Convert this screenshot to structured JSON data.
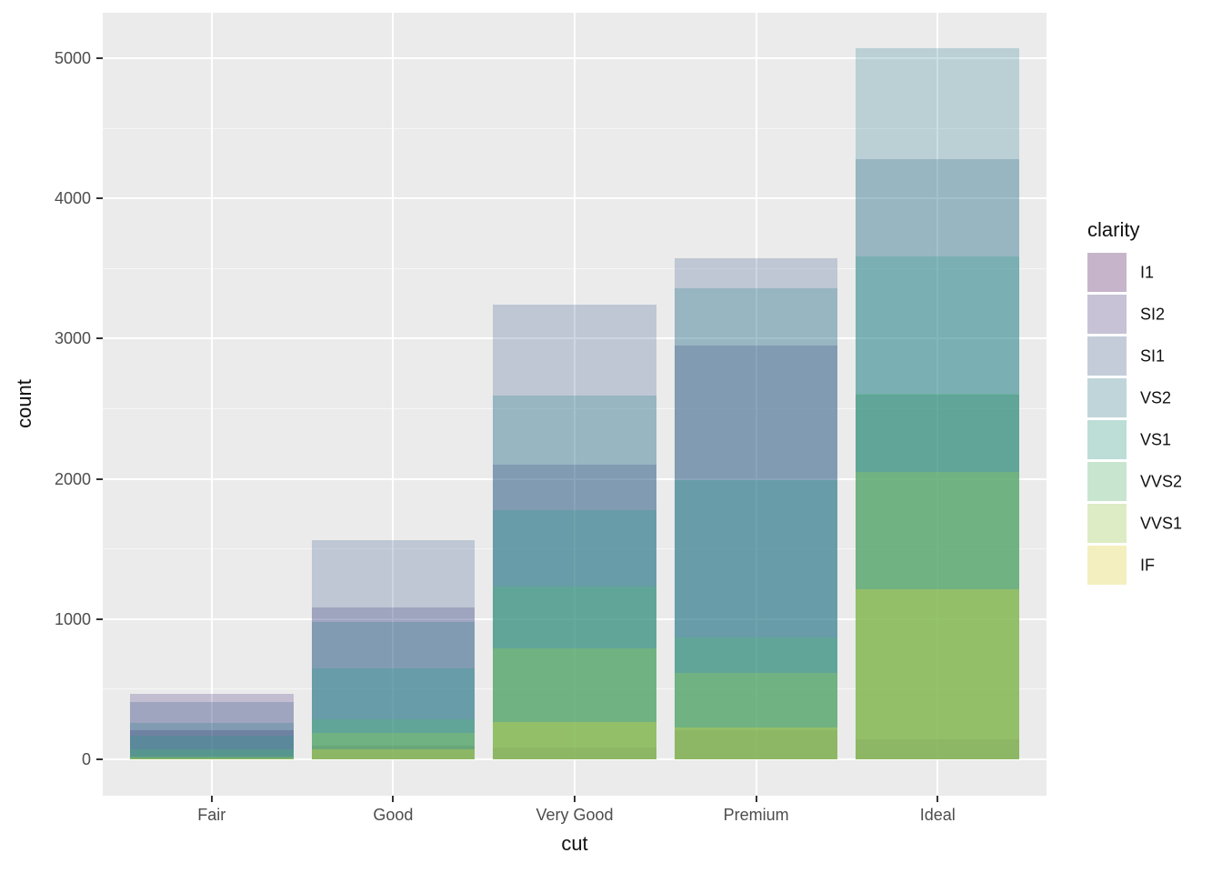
{
  "chart_data": {
    "type": "bar",
    "position": "identity-overlapping",
    "alpha": 0.25,
    "palette": "viridis",
    "title": "",
    "xlabel": "cut",
    "ylabel": "count",
    "categories": [
      "Fair",
      "Good",
      "Very Good",
      "Premium",
      "Ideal"
    ],
    "y_ticks": [
      0,
      1000,
      2000,
      3000,
      4000,
      5000
    ],
    "y_tick_labels": [
      "0",
      "1000",
      "2000",
      "3000",
      "4000",
      "5000"
    ],
    "y_minor_ticks": [
      500,
      1500,
      2500,
      3500,
      4500
    ],
    "ylim": [
      0,
      5325
    ],
    "grid": "on",
    "series": [
      {
        "name": "I1",
        "color": "#440154",
        "values": [
          210,
          96,
          84,
          205,
          146
        ]
      },
      {
        "name": "SI2",
        "color": "#46327E",
        "values": [
          466,
          1081,
          2100,
          2949,
          2598
        ]
      },
      {
        "name": "SI1",
        "color": "#365C8D",
        "values": [
          408,
          1560,
          3240,
          3575,
          4282
        ]
      },
      {
        "name": "VS2",
        "color": "#277F8E",
        "values": [
          261,
          978,
          2591,
          3357,
          5071
        ]
      },
      {
        "name": "VS1",
        "color": "#1FA187",
        "values": [
          170,
          648,
          1775,
          1989,
          3589
        ]
      },
      {
        "name": "VVS2",
        "color": "#4AC16D",
        "values": [
          69,
          286,
          1235,
          870,
          2606
        ]
      },
      {
        "name": "VVS1",
        "color": "#9FDA3A",
        "values": [
          17,
          186,
          789,
          616,
          2047
        ]
      },
      {
        "name": "IF",
        "color": "#FDE725",
        "values": [
          9,
          71,
          268,
          230,
          1212
        ]
      }
    ],
    "legend": {
      "title": "clarity",
      "position": "right",
      "entries": [
        "I1",
        "SI2",
        "SI1",
        "VS2",
        "VS1",
        "VVS2",
        "VVS1",
        "IF"
      ]
    }
  },
  "theme": {
    "panel_background": "#EBEBEB",
    "gridline_color": "#FFFFFF",
    "tick_color": "#333333",
    "tick_label_color": "#4D4D4D",
    "title_color": "#111111",
    "legend_key_background": "#F2F2F2",
    "figure_background": "#FFFFFF"
  }
}
